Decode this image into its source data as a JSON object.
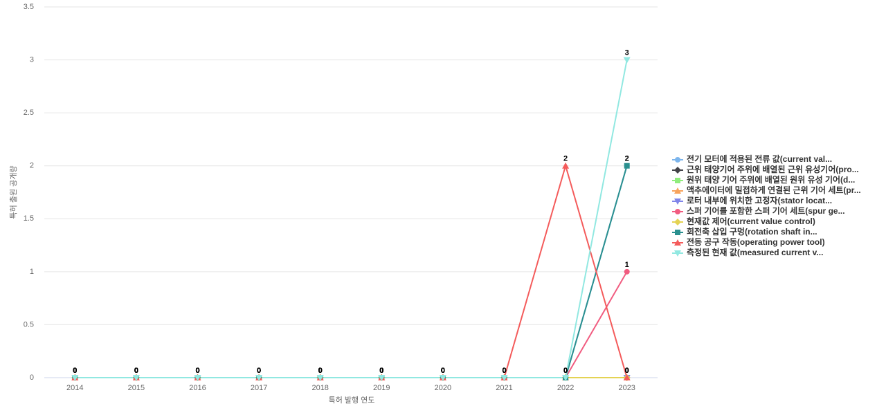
{
  "chart_data": {
    "type": "line",
    "x_label": "특허 발행 연도",
    "y_label": "특허 출원 공개량",
    "categories": [
      "2014",
      "2015",
      "2016",
      "2017",
      "2018",
      "2019",
      "2020",
      "2021",
      "2022",
      "2023"
    ],
    "ylim": [
      0,
      3.5
    ],
    "yticks": [
      0,
      0.5,
      1,
      1.5,
      2,
      2.5,
      3,
      3.5
    ],
    "grid": true,
    "series": [
      {
        "name": "전기 모터에 적용된 전류 값(current val...",
        "color": "#7cb5ec",
        "marker": "circle",
        "values": [
          0,
          0,
          0,
          0,
          0,
          0,
          0,
          0,
          0,
          2
        ]
      },
      {
        "name": "근위 태양기어 주위에 배열된 근위 유성기어(pro...",
        "color": "#434348",
        "marker": "diamond",
        "values": [
          0,
          0,
          0,
          0,
          0,
          0,
          0,
          0,
          0,
          0
        ]
      },
      {
        "name": "원위 태양 기어 주위에 배열된 원위 유성 기어(d...",
        "color": "#90ed7d",
        "marker": "square",
        "values": [
          0,
          0,
          0,
          0,
          0,
          0,
          0,
          0,
          0,
          0
        ]
      },
      {
        "name": "액추에이터에 밀접하게 연결된 근위 기어 세트(pr...",
        "color": "#f7a35c",
        "marker": "triangle",
        "values": [
          0,
          0,
          0,
          0,
          0,
          0,
          0,
          0,
          0,
          0
        ]
      },
      {
        "name": "로터 내부에 위치한 고정자(stator locat...",
        "color": "#8085e9",
        "marker": "triangle-down",
        "values": [
          0,
          0,
          0,
          0,
          0,
          0,
          0,
          0,
          0,
          0
        ]
      },
      {
        "name": "스퍼 기어를 포함한 스퍼 기어 세트(spur ge...",
        "color": "#f15c80",
        "marker": "circle",
        "values": [
          0,
          0,
          0,
          0,
          0,
          0,
          0,
          0,
          0,
          1
        ]
      },
      {
        "name": "현재값 제어(current value control)",
        "color": "#e4d354",
        "marker": "diamond",
        "values": [
          0,
          0,
          0,
          0,
          0,
          0,
          0,
          0,
          0,
          0
        ]
      },
      {
        "name": "회전축 삽입 구멍(rotation shaft in...",
        "color": "#2b908f",
        "marker": "square",
        "values": [
          0,
          0,
          0,
          0,
          0,
          0,
          0,
          0,
          0,
          2
        ]
      },
      {
        "name": "전동 공구 작동(operating power tool)",
        "color": "#f45b5b",
        "marker": "triangle",
        "values": [
          0,
          0,
          0,
          0,
          0,
          0,
          0,
          0,
          2,
          0
        ]
      },
      {
        "name": "측정된 현재 값(measured current v...",
        "color": "#91e8e1",
        "marker": "triangle-down",
        "values": [
          0,
          0,
          0,
          0,
          0,
          0,
          0,
          0,
          0,
          3
        ]
      }
    ]
  }
}
